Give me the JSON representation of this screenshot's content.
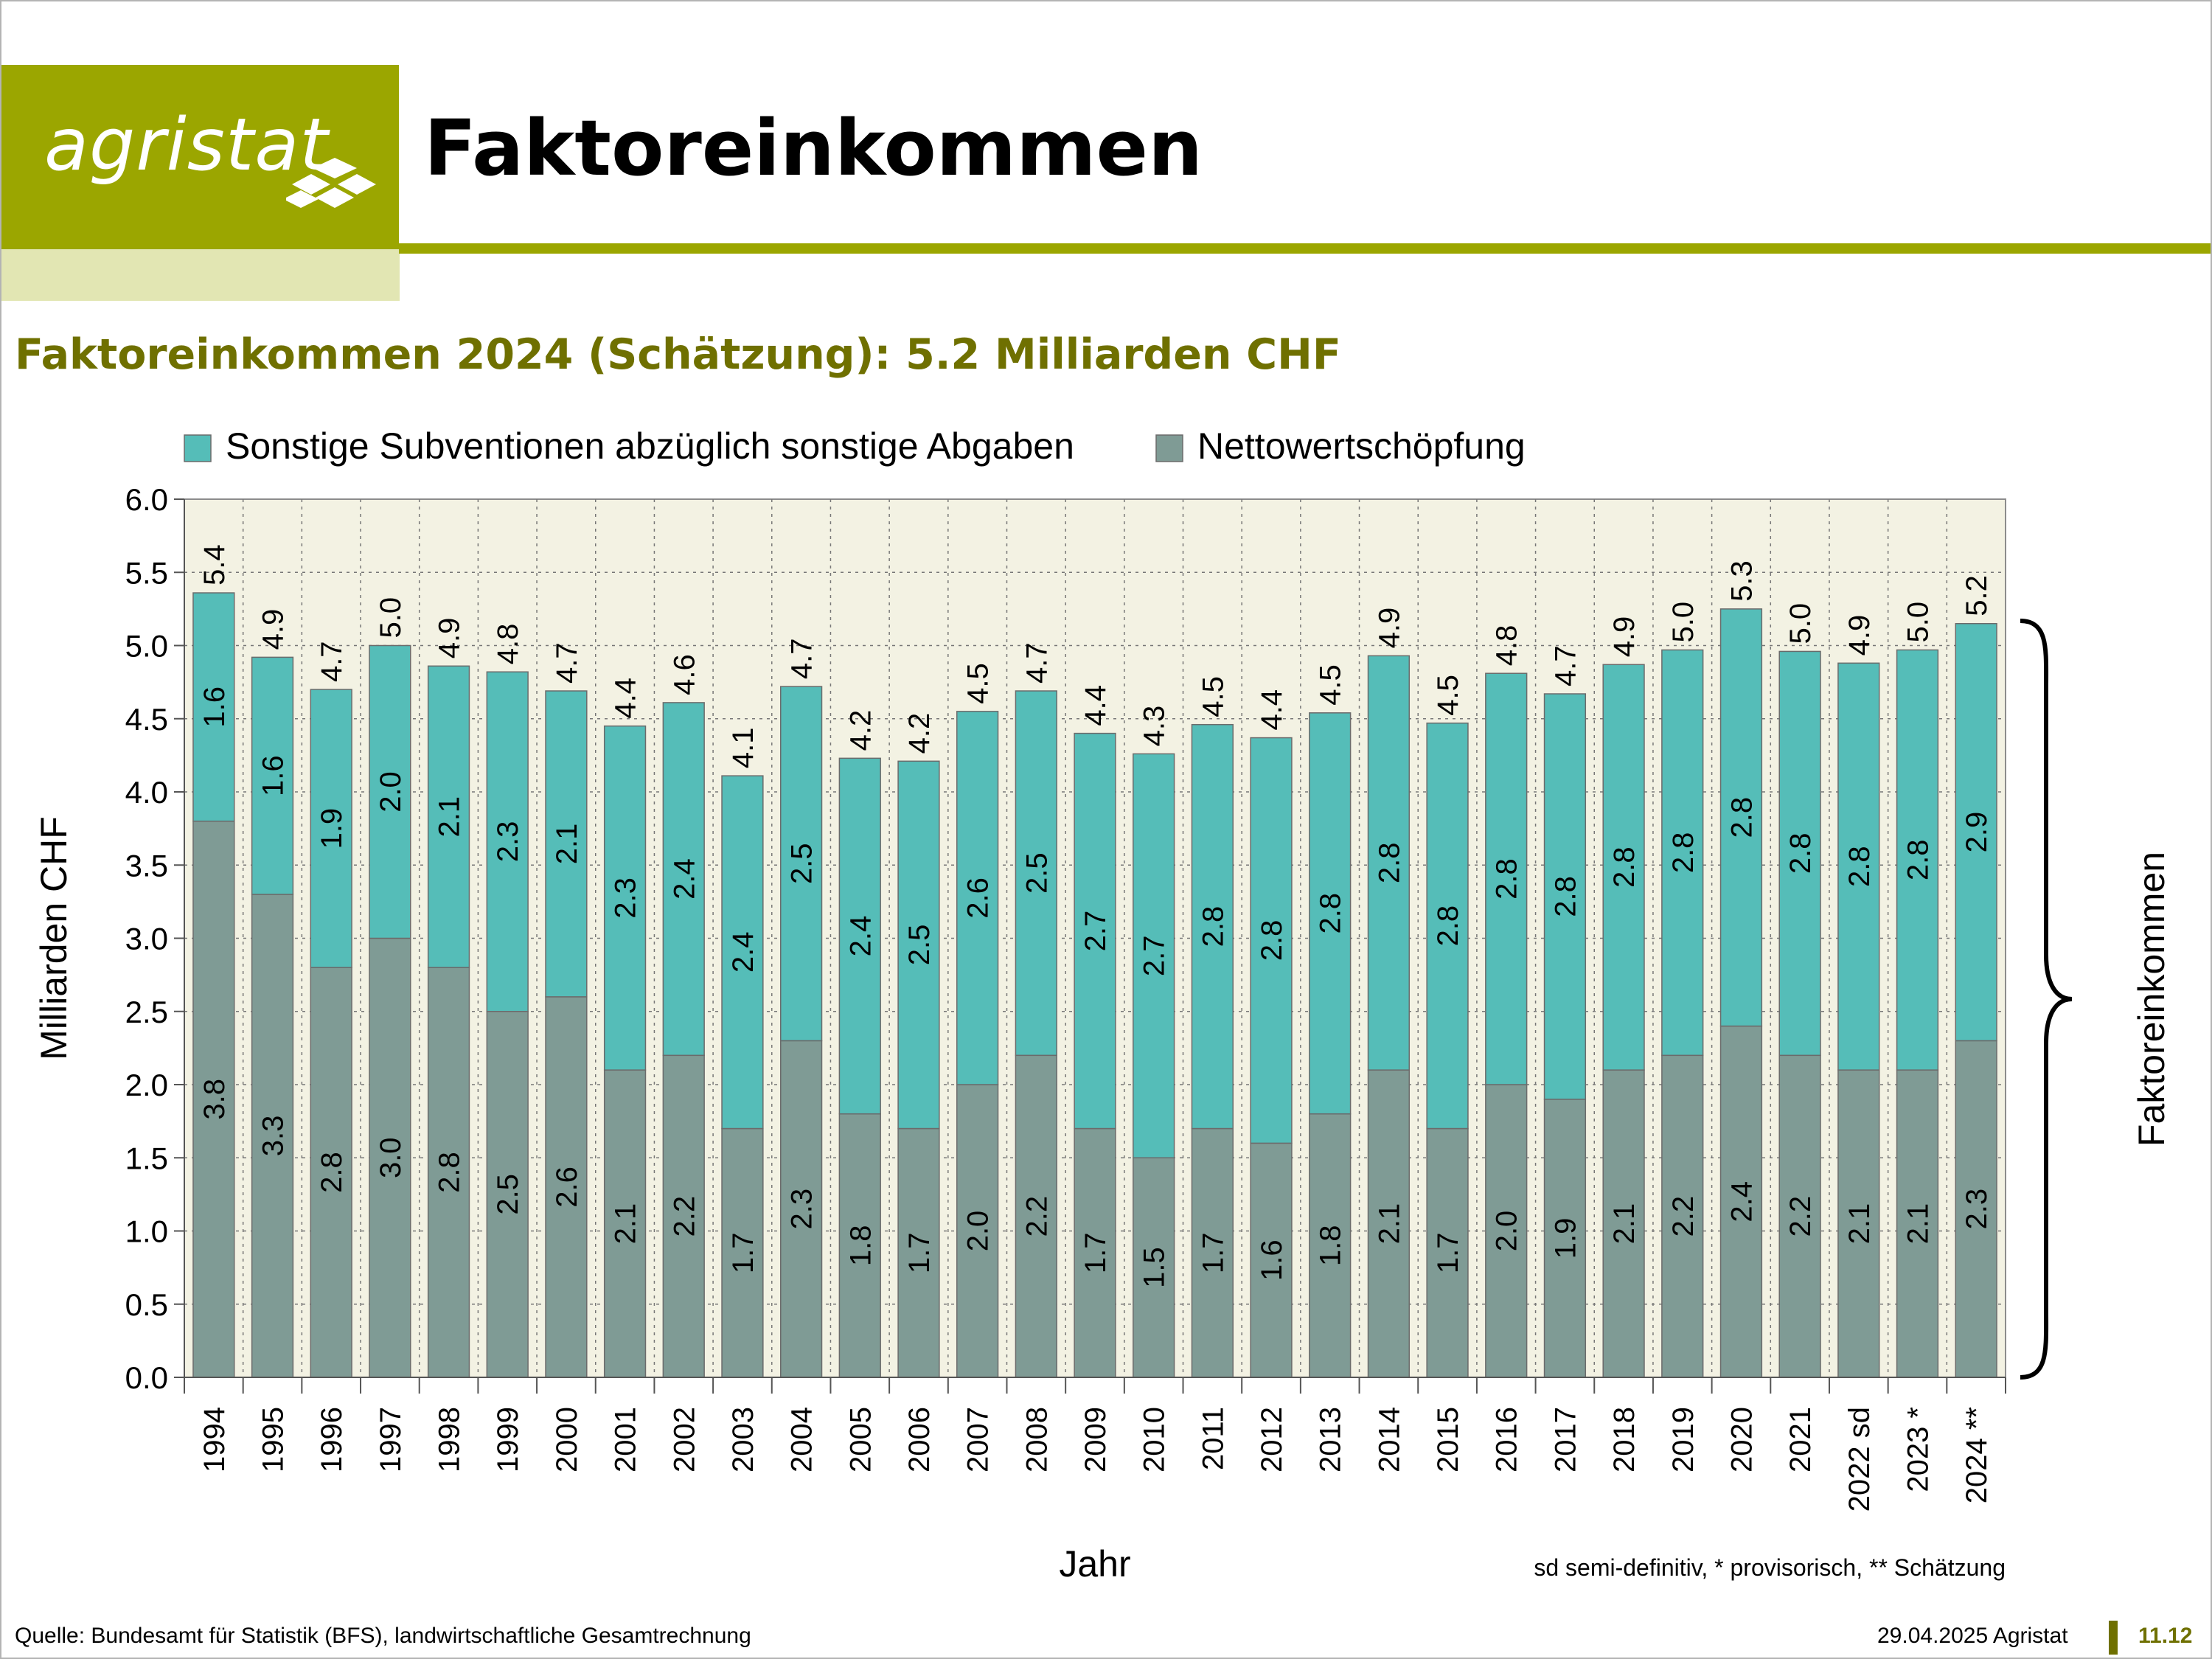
{
  "header": {
    "logo_text": "agristat",
    "title": "Faktoreinkommen",
    "subtitle": "Faktoreinkommen 2024 (Schätzung): 5.2 Milliarden CHF"
  },
  "footer": {
    "source": "Quelle: Bundesamt für Statistik (BFS), landwirtschaftliche Gesamtrechnung",
    "date": "29.04.2025 Agristat",
    "page": "11.12"
  },
  "colors": {
    "brand": "#9ba600",
    "brand_light": "#e2e6b3",
    "subtitle": "#6f7000",
    "teal": "#55bdb8",
    "grey": "#7f9b95",
    "plot_bg": "#f3f2e3"
  },
  "chart_data": {
    "type": "bar",
    "stacked": true,
    "xlabel": "Jahr",
    "ylabel": "Milliarden CHF",
    "ylim": [
      0,
      6
    ],
    "yticks": [
      "0.0",
      "0.5",
      "1.0",
      "1.5",
      "2.0",
      "2.5",
      "3.0",
      "3.5",
      "4.0",
      "4.5",
      "5.0",
      "5.5",
      "6.0"
    ],
    "grid": true,
    "legend_position": "top",
    "brace_label": "Faktoreinkommen",
    "note": "sd semi-definitiv, * provisorisch, ** Schätzung",
    "categories": [
      "1994",
      "1995",
      "1996",
      "1997",
      "1998",
      "1999",
      "2000",
      "2001",
      "2002",
      "2003",
      "2004",
      "2005",
      "2006",
      "2007",
      "2008",
      "2009",
      "2010",
      "2011",
      "2012",
      "2013",
      "2014",
      "2015",
      "2016",
      "2017",
      "2018",
      "2019",
      "2020",
      "2021",
      "2022 sd",
      "2023 *",
      "2024 **"
    ],
    "series": [
      {
        "name": "Nettowertschöpfung",
        "color": "#7f9b95",
        "values": [
          3.8,
          3.3,
          2.8,
          3.0,
          2.8,
          2.5,
          2.6,
          2.1,
          2.2,
          1.7,
          2.3,
          1.8,
          1.7,
          2.0,
          2.2,
          1.7,
          1.5,
          1.7,
          1.6,
          1.8,
          2.1,
          1.7,
          2.0,
          1.9,
          2.1,
          2.2,
          2.4,
          2.2,
          2.1,
          2.1,
          2.3
        ],
        "labels": [
          "3.8",
          "3.3",
          "2.8",
          "3.0",
          "2.8",
          "2.5",
          "2.6",
          "2.1",
          "2.2",
          "1.7",
          "2.3",
          "1.8",
          "1.7",
          "2.0",
          "2.2",
          "1.7",
          "1.5",
          "1.7",
          "1.6",
          "1.8",
          "2.1",
          "1.7",
          "2.0",
          "1.9",
          "2.1",
          "2.2",
          "2.4",
          "2.2",
          "2.1",
          "2.1",
          "2.3"
        ]
      },
      {
        "name": "Sonstige Subventionen abzüglich sonstige Abgaben",
        "color": "#55bdb8",
        "values": [
          1.6,
          1.6,
          1.9,
          2.0,
          2.1,
          2.3,
          2.1,
          2.3,
          2.4,
          2.4,
          2.5,
          2.4,
          2.5,
          2.6,
          2.5,
          2.7,
          2.7,
          2.8,
          2.8,
          2.8,
          2.8,
          2.8,
          2.8,
          2.8,
          2.8,
          2.8,
          2.8,
          2.8,
          2.8,
          2.8,
          2.9
        ],
        "labels": [
          "1.6",
          "1.6",
          "1.9",
          "2.0",
          "2.1",
          "2.3",
          "2.1",
          "2.3",
          "2.4",
          "2.4",
          "2.5",
          "2.4",
          "2.5",
          "2.6",
          "2.5",
          "2.7",
          "2.7",
          "2.8",
          "2.8",
          "2.8",
          "2.8",
          "2.8",
          "2.8",
          "2.8",
          "2.8",
          "2.8",
          "2.8",
          "2.8",
          "2.8",
          "2.8",
          "2.9"
        ]
      }
    ],
    "totals": [
      5.36,
      4.92,
      4.7,
      5.0,
      4.86,
      4.82,
      4.69,
      4.45,
      4.61,
      4.11,
      4.72,
      4.23,
      4.21,
      4.55,
      4.69,
      4.4,
      4.26,
      4.46,
      4.37,
      4.54,
      4.93,
      4.47,
      4.81,
      4.67,
      4.87,
      4.97,
      5.25,
      4.96,
      4.88,
      4.97,
      5.15
    ],
    "total_labels": [
      "5.4",
      "4.9",
      "4.7",
      "5.0",
      "4.9",
      "4.8",
      "4.7",
      "4.4",
      "4.6",
      "4.1",
      "4.7",
      "4.2",
      "4.2",
      "4.5",
      "4.7",
      "4.4",
      "4.3",
      "4.5",
      "4.4",
      "4.5",
      "4.9",
      "4.5",
      "4.8",
      "4.7",
      "4.9",
      "5.0",
      "5.3",
      "5.0",
      "4.9",
      "5.0",
      "5.2"
    ]
  }
}
